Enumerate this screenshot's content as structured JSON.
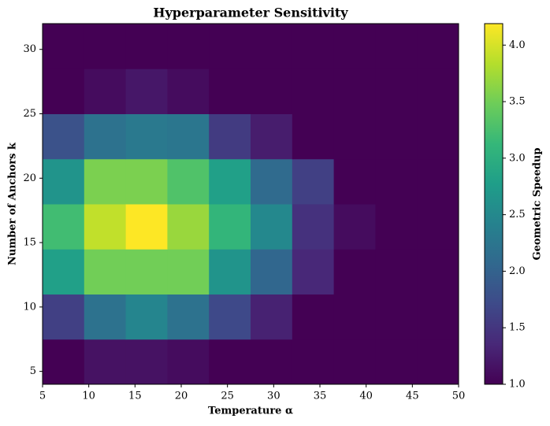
{
  "chart_data": {
    "type": "heatmap",
    "title": "Hyperparameter Sensitivity",
    "xlabel": "Temperature α",
    "ylabel": "Number of Anchors k",
    "colorbar_label": "Geometric Speedup",
    "colormap": "viridis",
    "x_edges": [
      5,
      9.5,
      14,
      18.5,
      23,
      27.5,
      32,
      36.5,
      41,
      45.5,
      50
    ],
    "y_edges": [
      4,
      7.5,
      11,
      14.5,
      18,
      21.5,
      25,
      28.5,
      32
    ],
    "z": [
      [
        1.0,
        1.15,
        1.15,
        1.1,
        1.0,
        1.0,
        1.0,
        1.0,
        1.0,
        1.0
      ],
      [
        1.6,
        2.2,
        2.45,
        2.2,
        1.7,
        1.3,
        1.0,
        1.0,
        1.0,
        1.0
      ],
      [
        2.8,
        3.5,
        3.5,
        3.5,
        2.65,
        2.05,
        1.35,
        1.0,
        1.0,
        1.0
      ],
      [
        3.2,
        3.9,
        4.19,
        3.7,
        3.1,
        2.5,
        1.45,
        1.1,
        1.0,
        1.0
      ],
      [
        2.65,
        3.55,
        3.55,
        3.3,
        2.8,
        2.1,
        1.6,
        1.0,
        1.0,
        1.0
      ],
      [
        1.8,
        2.2,
        2.3,
        2.25,
        1.55,
        1.25,
        1.0,
        1.0,
        1.0,
        1.0
      ],
      [
        1.0,
        1.1,
        1.2,
        1.1,
        1.0,
        1.0,
        1.0,
        1.0,
        1.0,
        1.0
      ],
      [
        1.0,
        1.0,
        1.0,
        1.0,
        1.0,
        1.0,
        1.0,
        1.0,
        1.0,
        1.0
      ]
    ],
    "xlim": [
      5,
      50
    ],
    "ylim": [
      4,
      32
    ],
    "xticks": [
      5,
      10,
      15,
      20,
      25,
      30,
      35,
      40,
      45,
      50
    ],
    "yticks": [
      5,
      10,
      15,
      20,
      25,
      30
    ],
    "clim": [
      1.0,
      4.19
    ],
    "cticks": [
      {
        "value": 1.0,
        "label": "1.0"
      },
      {
        "value": 1.5,
        "label": "1.5"
      },
      {
        "value": 2.0,
        "label": "2.0"
      },
      {
        "value": 2.5,
        "label": "2.5"
      },
      {
        "value": 3.0,
        "label": "3.0"
      },
      {
        "value": 3.5,
        "label": "3.5"
      },
      {
        "value": 4.0,
        "label": "4.0"
      }
    ]
  }
}
